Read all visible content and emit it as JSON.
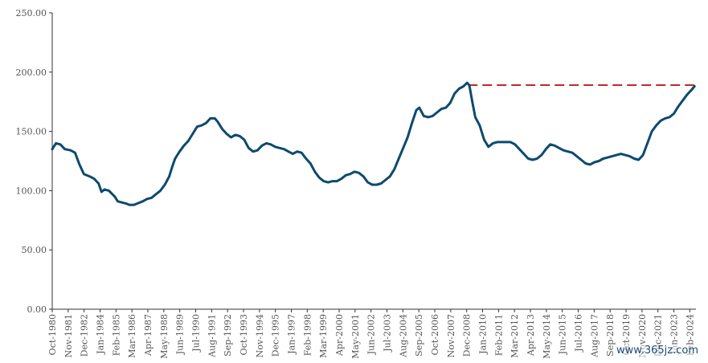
{
  "chart_data": {
    "type": "line",
    "title": "",
    "xlabel": "",
    "ylabel": "",
    "ylim": [
      0,
      250
    ],
    "y_ticks": [
      "0.00",
      "50.00",
      "100.00",
      "150.00",
      "200.00",
      "250.00"
    ],
    "x_ticks": [
      "Oct-1980",
      "Nov-1981",
      "Dec-1982",
      "Jan-1984",
      "Feb-1985",
      "Mar-1986",
      "Apr-1987",
      "May-1988",
      "Jun-1989",
      "Jul-1990",
      "Aug-1991",
      "Sep-1992",
      "Oct-1993",
      "Nov-1994",
      "Dec-1995",
      "Jan-1997",
      "Feb-1998",
      "Mar-1999",
      "Apr-2000",
      "May-2001",
      "Jun-2002",
      "Jul-2003",
      "Aug-2004",
      "Sep-2005",
      "Oct-2006",
      "Nov-2007",
      "Dec-2008",
      "Jan-2010",
      "Feb-2011",
      "Mar-2012",
      "Apr-2013",
      "May-2014",
      "Jun-2015",
      "Jul-2016",
      "Aug-2017",
      "Sep-2018",
      "Oct-2019",
      "Nov-2020",
      "Dec-2021",
      "Jan-2023",
      "Feb-2024"
    ],
    "grid": false,
    "series": [
      {
        "color": "#0d4a6e",
        "points": [
          [
            1980.75,
            135
          ],
          [
            1981.0,
            140
          ],
          [
            1981.3,
            139
          ],
          [
            1981.6,
            135
          ],
          [
            1982.0,
            134
          ],
          [
            1982.3,
            132
          ],
          [
            1982.6,
            122
          ],
          [
            1982.9,
            114
          ],
          [
            1983.3,
            112
          ],
          [
            1983.6,
            110
          ],
          [
            1983.9,
            106
          ],
          [
            1984.1,
            99
          ],
          [
            1984.3,
            101
          ],
          [
            1984.6,
            100
          ],
          [
            1985.0,
            95
          ],
          [
            1985.2,
            91
          ],
          [
            1985.5,
            90
          ],
          [
            1985.8,
            89
          ],
          [
            1986.0,
            88
          ],
          [
            1986.3,
            88
          ],
          [
            1986.5,
            89
          ],
          [
            1986.9,
            91
          ],
          [
            1987.2,
            93
          ],
          [
            1987.5,
            94
          ],
          [
            1987.8,
            97
          ],
          [
            1988.1,
            100
          ],
          [
            1988.4,
            105
          ],
          [
            1988.7,
            112
          ],
          [
            1988.9,
            120
          ],
          [
            1989.1,
            127
          ],
          [
            1989.4,
            133
          ],
          [
            1989.7,
            138
          ],
          [
            1990.0,
            142
          ],
          [
            1990.3,
            148
          ],
          [
            1990.6,
            154
          ],
          [
            1990.9,
            155
          ],
          [
            1991.2,
            157
          ],
          [
            1991.5,
            161
          ],
          [
            1991.8,
            161
          ],
          [
            1992.0,
            158
          ],
          [
            1992.3,
            152
          ],
          [
            1992.6,
            148
          ],
          [
            1992.9,
            145
          ],
          [
            1993.2,
            147
          ],
          [
            1993.5,
            146
          ],
          [
            1993.8,
            143
          ],
          [
            1994.1,
            136
          ],
          [
            1994.4,
            133
          ],
          [
            1994.7,
            134
          ],
          [
            1995.0,
            138
          ],
          [
            1995.3,
            140
          ],
          [
            1995.6,
            139
          ],
          [
            1995.9,
            137
          ],
          [
            1996.2,
            136
          ],
          [
            1996.5,
            135
          ],
          [
            1996.8,
            133
          ],
          [
            1997.1,
            131
          ],
          [
            1997.4,
            133
          ],
          [
            1997.7,
            132
          ],
          [
            1998.0,
            127
          ],
          [
            1998.3,
            123
          ],
          [
            1998.6,
            116
          ],
          [
            1998.9,
            111
          ],
          [
            1999.2,
            108
          ],
          [
            1999.5,
            107
          ],
          [
            1999.8,
            108
          ],
          [
            2000.1,
            108
          ],
          [
            2000.4,
            110
          ],
          [
            2000.7,
            113
          ],
          [
            2001.0,
            114
          ],
          [
            2001.3,
            116
          ],
          [
            2001.6,
            115
          ],
          [
            2001.9,
            112
          ],
          [
            2002.2,
            107
          ],
          [
            2002.5,
            105
          ],
          [
            2002.8,
            105
          ],
          [
            2003.1,
            106
          ],
          [
            2003.4,
            109
          ],
          [
            2003.7,
            112
          ],
          [
            2004.0,
            118
          ],
          [
            2004.3,
            127
          ],
          [
            2004.6,
            136
          ],
          [
            2004.9,
            145
          ],
          [
            2005.2,
            157
          ],
          [
            2005.5,
            168
          ],
          [
            2005.7,
            170
          ],
          [
            2006.0,
            163
          ],
          [
            2006.3,
            162
          ],
          [
            2006.6,
            163
          ],
          [
            2006.9,
            166
          ],
          [
            2007.2,
            169
          ],
          [
            2007.5,
            170
          ],
          [
            2007.8,
            174
          ],
          [
            2008.1,
            182
          ],
          [
            2008.4,
            186
          ],
          [
            2008.7,
            188
          ],
          [
            2008.95,
            191
          ],
          [
            2009.1,
            189
          ],
          [
            2009.3,
            175
          ],
          [
            2009.5,
            162
          ],
          [
            2009.8,
            155
          ],
          [
            2010.1,
            143
          ],
          [
            2010.4,
            137
          ],
          [
            2010.7,
            140
          ],
          [
            2011.0,
            141
          ],
          [
            2011.3,
            141
          ],
          [
            2011.6,
            141
          ],
          [
            2011.9,
            141
          ],
          [
            2012.2,
            139
          ],
          [
            2012.5,
            135
          ],
          [
            2012.8,
            131
          ],
          [
            2013.1,
            127
          ],
          [
            2013.4,
            126
          ],
          [
            2013.7,
            127
          ],
          [
            2014.0,
            130
          ],
          [
            2014.3,
            135
          ],
          [
            2014.6,
            139
          ],
          [
            2014.9,
            138
          ],
          [
            2015.2,
            136
          ],
          [
            2015.5,
            134
          ],
          [
            2015.8,
            133
          ],
          [
            2016.1,
            132
          ],
          [
            2016.4,
            129
          ],
          [
            2016.7,
            126
          ],
          [
            2017.0,
            123
          ],
          [
            2017.3,
            122
          ],
          [
            2017.6,
            124
          ],
          [
            2017.9,
            125
          ],
          [
            2018.2,
            127
          ],
          [
            2018.5,
            128
          ],
          [
            2018.8,
            129
          ],
          [
            2019.1,
            130
          ],
          [
            2019.4,
            131
          ],
          [
            2019.7,
            130
          ],
          [
            2020.0,
            129
          ],
          [
            2020.3,
            127
          ],
          [
            2020.6,
            126
          ],
          [
            2020.9,
            130
          ],
          [
            2021.2,
            140
          ],
          [
            2021.5,
            150
          ],
          [
            2021.8,
            155
          ],
          [
            2022.1,
            159
          ],
          [
            2022.4,
            161
          ],
          [
            2022.7,
            162
          ],
          [
            2023.0,
            165
          ],
          [
            2023.3,
            171
          ],
          [
            2023.6,
            176
          ],
          [
            2023.9,
            181
          ],
          [
            2024.2,
            185
          ],
          [
            2024.4,
            188
          ]
        ]
      }
    ],
    "reference_line": {
      "y": 189,
      "x_start": 2009.0,
      "x_end": 2024.4,
      "style": "dashed",
      "color": "#c0272d"
    }
  },
  "watermark": "www.365jz.com"
}
